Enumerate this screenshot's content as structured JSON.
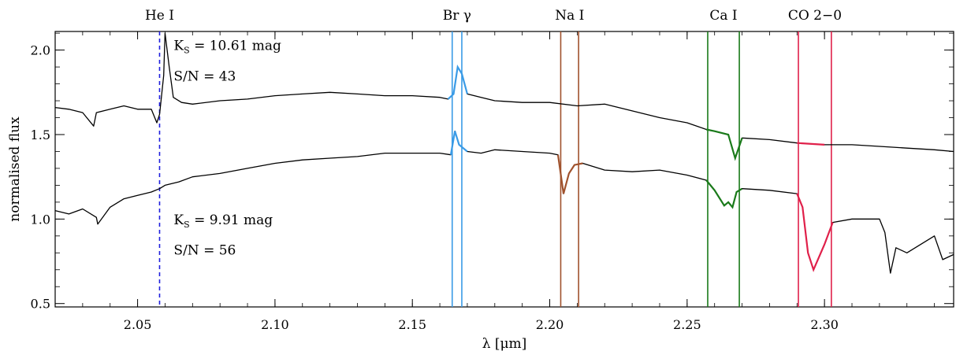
{
  "chart_data": {
    "type": "line",
    "xlabel": "λ [μm]",
    "ylabel": "normalised flux",
    "xlim": [
      2.02,
      2.347
    ],
    "ylim": [
      0.48,
      2.11
    ],
    "x_ticks": [
      2.05,
      2.1,
      2.15,
      2.2,
      2.25,
      2.3
    ],
    "x_tick_labels": [
      "2.05",
      "2.10",
      "2.15",
      "2.20",
      "2.25",
      "2.30"
    ],
    "y_ticks": [
      0.5,
      1.0,
      1.5,
      2.0
    ],
    "y_tick_labels": [
      "0.5",
      "1.0",
      "1.5",
      "2.0"
    ],
    "grid": false,
    "colors": {
      "spectrum": "#000000",
      "he": "#1f1fdd",
      "brg": "#3a9be6",
      "na": "#a0522d",
      "ca": "#1a7a1a",
      "co": "#e0204a"
    },
    "spectral_lines": [
      {
        "label": "He I",
        "x": [
          2.058
        ],
        "color": "#1f1fdd",
        "style": "dashed"
      },
      {
        "label": "Br γ",
        "x": [
          2.1645,
          2.168
        ],
        "color": "#3a9be6",
        "style": "solid"
      },
      {
        "label": "Na I",
        "x": [
          2.204,
          2.2105
        ],
        "color": "#a0522d",
        "style": "solid"
      },
      {
        "label": "Ca I",
        "x": [
          2.2575,
          2.269
        ],
        "color": "#1a7a1a",
        "style": "solid"
      },
      {
        "label": "CO 2−0",
        "x": [
          2.2905,
          2.3025
        ],
        "color": "#e0204a",
        "style": "solid"
      }
    ],
    "series": [
      {
        "x": [
          2.02,
          2.025,
          2.03,
          2.034,
          2.035,
          2.04,
          2.045,
          2.05,
          2.055,
          2.057,
          2.058,
          2.0595,
          2.06,
          2.0615,
          2.063,
          2.066,
          2.07,
          2.08,
          2.09,
          2.1,
          2.11,
          2.12,
          2.13,
          2.14,
          2.15,
          2.16,
          2.163,
          2.165,
          2.1665,
          2.168,
          2.17,
          2.175,
          2.18,
          2.19,
          2.2,
          2.21,
          2.22,
          2.23,
          2.24,
          2.25,
          2.257,
          2.26,
          2.265,
          2.2675,
          2.27,
          2.28,
          2.29,
          2.3,
          2.31,
          2.32,
          2.33,
          2.34,
          2.347
        ],
        "y": [
          1.66,
          1.65,
          1.63,
          1.55,
          1.63,
          1.65,
          1.67,
          1.65,
          1.65,
          1.57,
          1.62,
          1.85,
          2.1,
          1.9,
          1.72,
          1.69,
          1.68,
          1.7,
          1.71,
          1.73,
          1.74,
          1.75,
          1.74,
          1.73,
          1.73,
          1.72,
          1.71,
          1.74,
          1.9,
          1.86,
          1.74,
          1.72,
          1.7,
          1.69,
          1.69,
          1.67,
          1.68,
          1.64,
          1.6,
          1.57,
          1.53,
          1.52,
          1.5,
          1.36,
          1.48,
          1.47,
          1.45,
          1.44,
          1.44,
          1.43,
          1.42,
          1.41,
          1.4
        ]
      },
      {
        "x": [
          2.02,
          2.025,
          2.03,
          2.035,
          2.0355,
          2.04,
          2.045,
          2.05,
          2.055,
          2.058,
          2.06,
          2.065,
          2.07,
          2.08,
          2.09,
          2.1,
          2.11,
          2.12,
          2.13,
          2.14,
          2.15,
          2.16,
          2.164,
          2.1655,
          2.167,
          2.17,
          2.175,
          2.18,
          2.19,
          2.2,
          2.203,
          2.205,
          2.207,
          2.209,
          2.212,
          2.22,
          2.23,
          2.24,
          2.25,
          2.257,
          2.26,
          2.2635,
          2.265,
          2.2665,
          2.268,
          2.27,
          2.28,
          2.29,
          2.292,
          2.294,
          2.296,
          2.3,
          2.303,
          2.31,
          2.32,
          2.322,
          2.324,
          2.326,
          2.33,
          2.34,
          2.343,
          2.347
        ],
        "y": [
          1.05,
          1.03,
          1.06,
          1.01,
          0.97,
          1.07,
          1.12,
          1.14,
          1.16,
          1.18,
          1.2,
          1.22,
          1.25,
          1.27,
          1.3,
          1.33,
          1.35,
          1.36,
          1.37,
          1.39,
          1.39,
          1.39,
          1.38,
          1.52,
          1.44,
          1.4,
          1.39,
          1.41,
          1.4,
          1.39,
          1.38,
          1.15,
          1.27,
          1.32,
          1.33,
          1.29,
          1.28,
          1.29,
          1.26,
          1.23,
          1.17,
          1.08,
          1.1,
          1.07,
          1.16,
          1.18,
          1.17,
          1.15,
          1.07,
          0.8,
          0.7,
          0.85,
          0.98,
          1.0,
          1.0,
          0.92,
          0.68,
          0.83,
          0.8,
          0.9,
          0.76,
          0.79
        ]
      }
    ],
    "annotations": [
      {
        "text": "K",
        "sub": "S",
        "rest": " = 10.61 mag",
        "anchor_x": 2.062,
        "anchor_y": 2.0
      },
      {
        "text": "S/N = 43",
        "anchor_x": 2.062,
        "anchor_y": 1.82
      },
      {
        "text": "K",
        "sub": "S",
        "rest": " =  9.91 mag",
        "anchor_x": 2.062,
        "anchor_y": 0.97
      },
      {
        "text": "S/N = 56",
        "anchor_x": 2.062,
        "anchor_y": 0.79
      }
    ]
  }
}
